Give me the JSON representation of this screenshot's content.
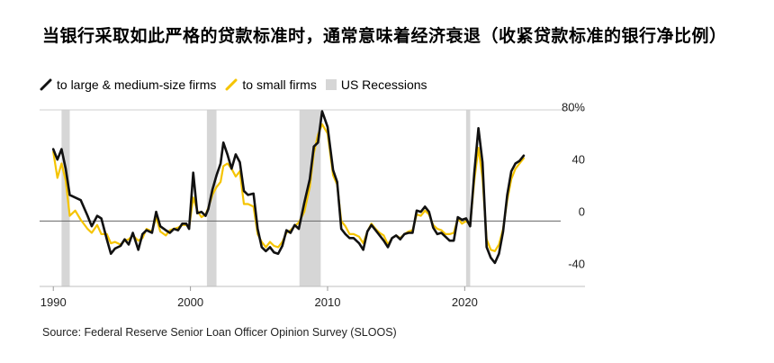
{
  "title": "当银行采取如此严格的贷款标准时，通常意味着经济衰退（收紧贷款标准的银行净比例）",
  "source": "Source: Federal Reserve Senior Loan Officer Opinion Survey (SLOOS)",
  "colors": {
    "large": "#111111",
    "small": "#f5c400",
    "recession": "#d6d6d6",
    "zero": "#666666",
    "grid": "#e8e8e8"
  },
  "chart_data": {
    "type": "line",
    "xlim": [
      1989,
      2027
    ],
    "ylim": [
      -50,
      85
    ],
    "x_ticks": [
      1990,
      2000,
      2010,
      2020
    ],
    "y_ticks": [
      80,
      40,
      0,
      -40
    ],
    "y_tick_labels": [
      "80%",
      "40",
      "0",
      "-40"
    ],
    "legend": [
      {
        "key": "large",
        "label": "to large & medium-size firms",
        "kind": "line"
      },
      {
        "key": "small",
        "label": "to small firms",
        "kind": "line"
      },
      {
        "key": "recession",
        "label": "US Recessions",
        "kind": "band"
      }
    ],
    "recessions": [
      [
        1990.6,
        1991.2
      ],
      [
        2001.2,
        2001.9
      ],
      [
        2007.95,
        2009.5
      ],
      [
        2020.1,
        2020.4
      ]
    ],
    "series": [
      {
        "name": "to large & medium-size firms",
        "key": "large",
        "points": [
          [
            1990.0,
            55
          ],
          [
            1990.3,
            47
          ],
          [
            1990.6,
            55
          ],
          [
            1990.9,
            40
          ],
          [
            1991.2,
            20
          ],
          [
            1991.6,
            18
          ],
          [
            1992.0,
            16
          ],
          [
            1992.5,
            4
          ],
          [
            1992.8,
            -4
          ],
          [
            1993.2,
            4
          ],
          [
            1993.5,
            2
          ],
          [
            1993.9,
            -14
          ],
          [
            1994.2,
            -25
          ],
          [
            1994.5,
            -21
          ],
          [
            1994.9,
            -19
          ],
          [
            1995.2,
            -14
          ],
          [
            1995.5,
            -18
          ],
          [
            1995.8,
            -9
          ],
          [
            1996.2,
            -22
          ],
          [
            1996.5,
            -10
          ],
          [
            1996.8,
            -7
          ],
          [
            1997.2,
            -9
          ],
          [
            1997.5,
            7
          ],
          [
            1997.8,
            -4
          ],
          [
            1998.2,
            -7
          ],
          [
            1998.5,
            -9
          ],
          [
            1998.8,
            -6
          ],
          [
            1999.1,
            -7
          ],
          [
            1999.4,
            -2
          ],
          [
            1999.7,
            -2
          ],
          [
            1999.9,
            -6
          ],
          [
            2000.2,
            37
          ],
          [
            2000.5,
            6
          ],
          [
            2000.8,
            7
          ],
          [
            2001.1,
            4
          ],
          [
            2001.3,
            9
          ],
          [
            2001.6,
            24
          ],
          [
            2001.9,
            35
          ],
          [
            2002.2,
            44
          ],
          [
            2002.4,
            60
          ],
          [
            2002.7,
            51
          ],
          [
            2003.0,
            40
          ],
          [
            2003.3,
            51
          ],
          [
            2003.6,
            45
          ],
          [
            2003.9,
            23
          ],
          [
            2004.2,
            20
          ],
          [
            2004.6,
            21
          ],
          [
            2004.9,
            -6
          ],
          [
            2005.2,
            -20
          ],
          [
            2005.5,
            -23
          ],
          [
            2005.8,
            -20
          ],
          [
            2006.1,
            -24
          ],
          [
            2006.4,
            -25
          ],
          [
            2006.7,
            -19
          ],
          [
            2007.0,
            -7
          ],
          [
            2007.3,
            -9
          ],
          [
            2007.6,
            -3
          ],
          [
            2007.9,
            -6
          ],
          [
            2008.3,
            14
          ],
          [
            2008.7,
            32
          ],
          [
            2009.0,
            57
          ],
          [
            2009.3,
            60
          ],
          [
            2009.6,
            84
          ],
          [
            2010.0,
            72
          ],
          [
            2010.4,
            39
          ],
          [
            2010.7,
            30
          ],
          [
            2011.0,
            -6
          ],
          [
            2011.3,
            -10
          ],
          [
            2011.6,
            -13
          ],
          [
            2011.9,
            -13
          ],
          [
            2012.3,
            -17
          ],
          [
            2012.6,
            -22
          ],
          [
            2012.9,
            -8
          ],
          [
            2013.2,
            -3
          ],
          [
            2013.5,
            -7
          ],
          [
            2013.8,
            -11
          ],
          [
            2014.1,
            -15
          ],
          [
            2014.4,
            -20
          ],
          [
            2014.7,
            -13
          ],
          [
            2015.0,
            -11
          ],
          [
            2015.3,
            -14
          ],
          [
            2015.6,
            -10
          ],
          [
            2015.9,
            -9
          ],
          [
            2016.2,
            -9
          ],
          [
            2016.5,
            8
          ],
          [
            2016.8,
            7
          ],
          [
            2017.1,
            11
          ],
          [
            2017.4,
            7
          ],
          [
            2017.7,
            -5
          ],
          [
            2018.0,
            -10
          ],
          [
            2018.3,
            -9
          ],
          [
            2018.6,
            -12
          ],
          [
            2018.9,
            -15
          ],
          [
            2019.2,
            -15
          ],
          [
            2019.5,
            3
          ],
          [
            2019.8,
            1
          ],
          [
            2020.1,
            2
          ],
          [
            2020.4,
            -4
          ],
          [
            2020.7,
            37
          ],
          [
            2021.0,
            71
          ],
          [
            2021.3,
            45
          ],
          [
            2021.6,
            -20
          ],
          [
            2021.9,
            -28
          ],
          [
            2022.2,
            -32
          ],
          [
            2022.5,
            -25
          ],
          [
            2022.8,
            -8
          ],
          [
            2023.1,
            20
          ],
          [
            2023.4,
            38
          ],
          [
            2023.7,
            44
          ],
          [
            2024.0,
            46
          ],
          [
            2024.3,
            50
          ]
        ]
      },
      {
        "name": "to small firms",
        "key": "small",
        "points": [
          [
            1990.0,
            53
          ],
          [
            1990.3,
            33
          ],
          [
            1990.6,
            44
          ],
          [
            1990.9,
            31
          ],
          [
            1991.2,
            4
          ],
          [
            1991.6,
            8
          ],
          [
            1992.0,
            1
          ],
          [
            1992.5,
            -6
          ],
          [
            1992.8,
            -9
          ],
          [
            1993.2,
            -3
          ],
          [
            1993.5,
            -10
          ],
          [
            1993.9,
            -10
          ],
          [
            1994.2,
            -17
          ],
          [
            1994.5,
            -16
          ],
          [
            1994.9,
            -18
          ],
          [
            1995.2,
            -15
          ],
          [
            1995.5,
            -14
          ],
          [
            1995.8,
            -11
          ],
          [
            1996.2,
            -15
          ],
          [
            1996.5,
            -13
          ],
          [
            1996.8,
            -6
          ],
          [
            1997.2,
            -8
          ],
          [
            1997.5,
            3
          ],
          [
            1997.8,
            -8
          ],
          [
            1998.2,
            -11
          ],
          [
            1998.5,
            -7
          ],
          [
            1998.8,
            -6
          ],
          [
            1999.1,
            -5
          ],
          [
            1999.4,
            -3
          ],
          [
            1999.7,
            -3
          ],
          [
            1999.9,
            -5
          ],
          [
            2000.2,
            18
          ],
          [
            2000.5,
            8
          ],
          [
            2000.8,
            3
          ],
          [
            2001.1,
            5
          ],
          [
            2001.3,
            10
          ],
          [
            2001.6,
            20
          ],
          [
            2001.9,
            26
          ],
          [
            2002.2,
            30
          ],
          [
            2002.4,
            42
          ],
          [
            2002.7,
            44
          ],
          [
            2003.0,
            40
          ],
          [
            2003.3,
            34
          ],
          [
            2003.6,
            38
          ],
          [
            2003.9,
            13
          ],
          [
            2004.2,
            13
          ],
          [
            2004.6,
            11
          ],
          [
            2004.9,
            -10
          ],
          [
            2005.2,
            -16
          ],
          [
            2005.5,
            -20
          ],
          [
            2005.8,
            -16
          ],
          [
            2006.1,
            -19
          ],
          [
            2006.4,
            -20
          ],
          [
            2006.7,
            -16
          ],
          [
            2007.0,
            -9
          ],
          [
            2007.3,
            -7
          ],
          [
            2007.6,
            -4
          ],
          [
            2007.9,
            -1
          ],
          [
            2008.3,
            7
          ],
          [
            2008.7,
            26
          ],
          [
            2009.0,
            52
          ],
          [
            2009.3,
            66
          ],
          [
            2009.6,
            74
          ],
          [
            2010.0,
            67
          ],
          [
            2010.4,
            35
          ],
          [
            2010.7,
            28
          ],
          [
            2011.0,
            0
          ],
          [
            2011.3,
            -4
          ],
          [
            2011.6,
            -10
          ],
          [
            2011.9,
            -10
          ],
          [
            2012.3,
            -12
          ],
          [
            2012.6,
            -17
          ],
          [
            2012.9,
            -8
          ],
          [
            2013.2,
            -2
          ],
          [
            2013.5,
            -6
          ],
          [
            2013.8,
            -9
          ],
          [
            2014.1,
            -11
          ],
          [
            2014.4,
            -18
          ],
          [
            2014.7,
            -13
          ],
          [
            2015.0,
            -11
          ],
          [
            2015.3,
            -13
          ],
          [
            2015.6,
            -10
          ],
          [
            2015.9,
            -8
          ],
          [
            2016.2,
            -7
          ],
          [
            2016.5,
            5
          ],
          [
            2016.8,
            4
          ],
          [
            2017.1,
            8
          ],
          [
            2017.4,
            5
          ],
          [
            2017.7,
            -3
          ],
          [
            2018.0,
            -6
          ],
          [
            2018.3,
            -7
          ],
          [
            2018.6,
            -10
          ],
          [
            2018.9,
            -10
          ],
          [
            2019.2,
            -9
          ],
          [
            2019.5,
            2
          ],
          [
            2019.8,
            -2
          ],
          [
            2020.1,
            0
          ],
          [
            2020.4,
            -3
          ],
          [
            2020.7,
            31
          ],
          [
            2021.0,
            56
          ],
          [
            2021.3,
            33
          ],
          [
            2021.6,
            -14
          ],
          [
            2021.9,
            -22
          ],
          [
            2022.2,
            -23
          ],
          [
            2022.5,
            -18
          ],
          [
            2022.8,
            -6
          ],
          [
            2023.1,
            16
          ],
          [
            2023.4,
            32
          ],
          [
            2023.7,
            40
          ],
          [
            2024.0,
            44
          ],
          [
            2024.3,
            48
          ]
        ]
      }
    ]
  }
}
